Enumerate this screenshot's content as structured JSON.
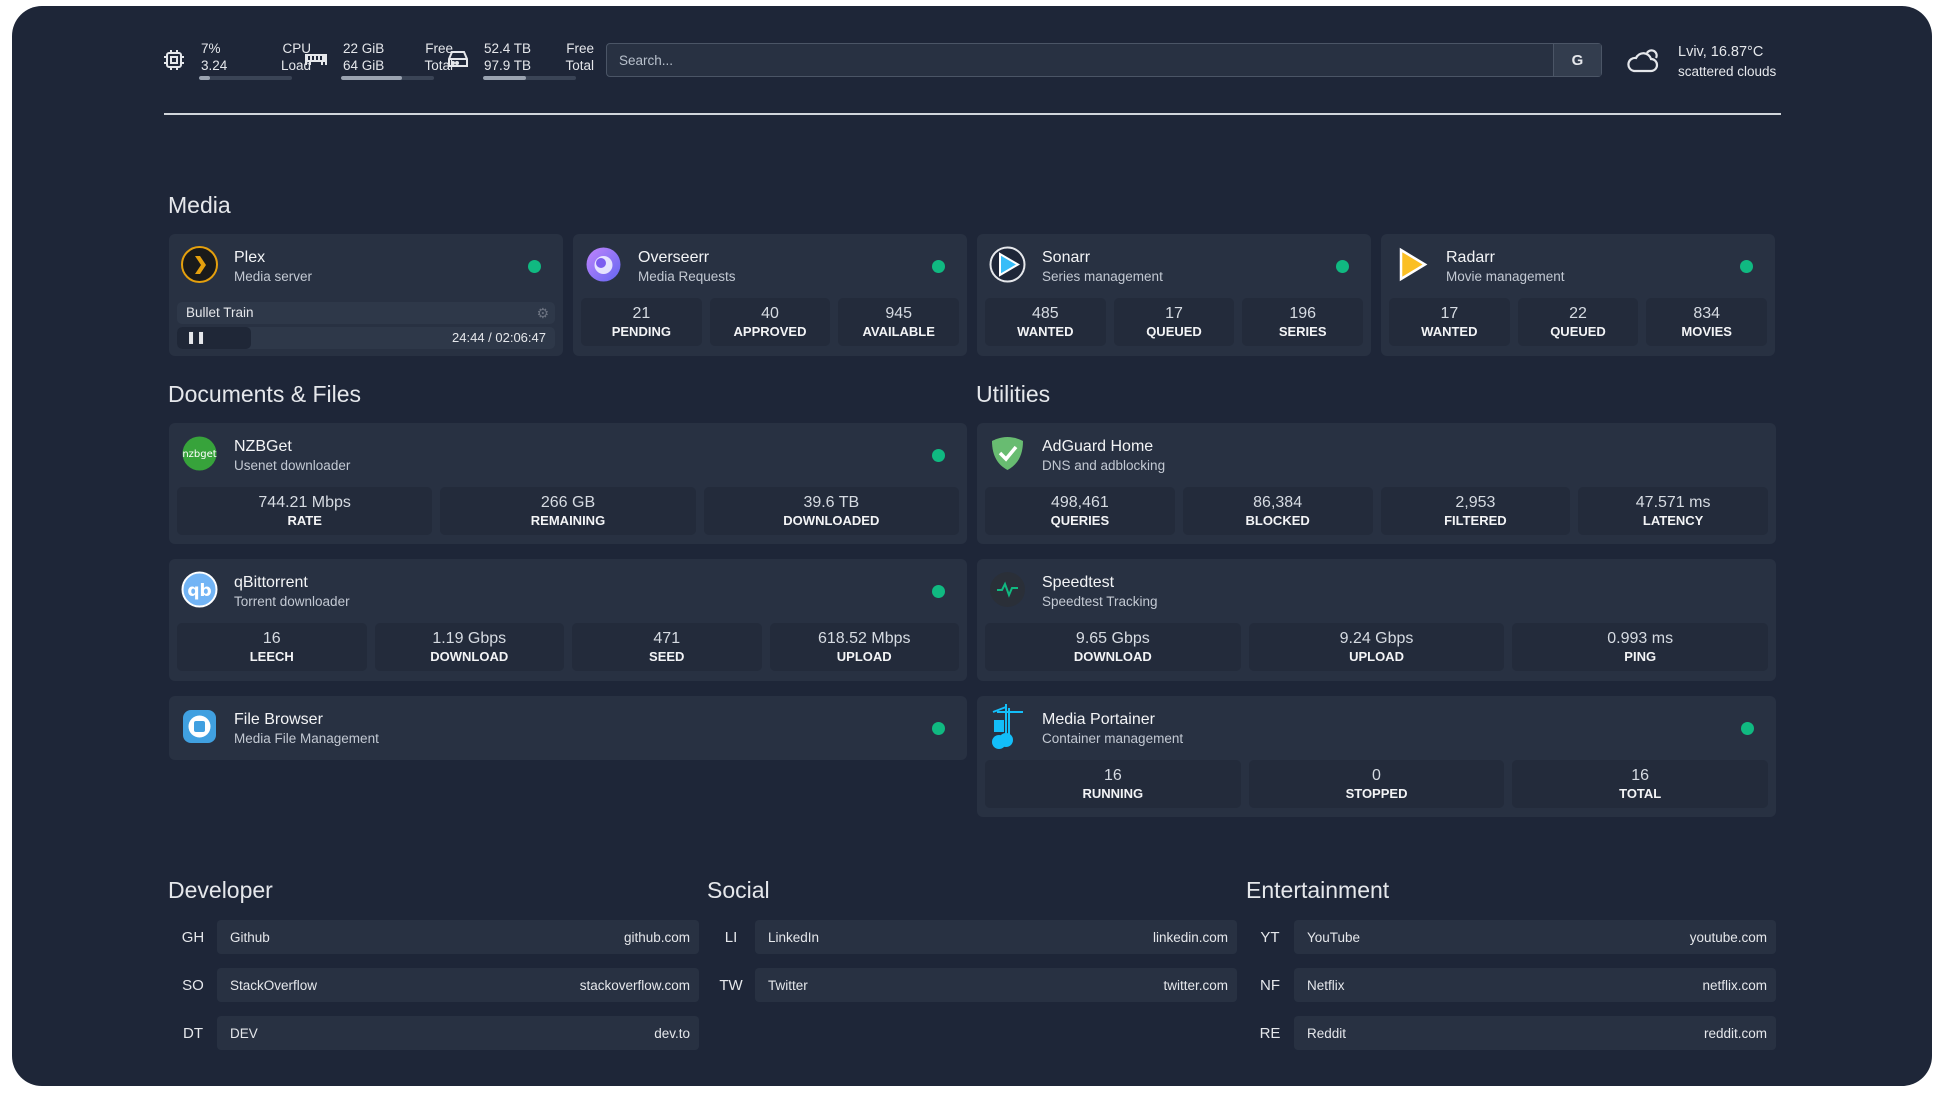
{
  "header": {
    "cpu": {
      "percent": "7%",
      "load": "3.24",
      "label1": "CPU",
      "label2": "Load",
      "fill": 0.07
    },
    "memory": {
      "free": "22 GiB",
      "total": "64 GiB",
      "label1": "Free",
      "label2": "Total",
      "fill": 0.66
    },
    "disk": {
      "free": "52.4 TB",
      "total": "97.9 TB",
      "label1": "Free",
      "label2": "Total",
      "fill": 0.46
    },
    "search": {
      "placeholder": "Search...",
      "button": "G"
    },
    "weather": {
      "location": "Lviv, 16.87°C",
      "condition": "scattered clouds",
      "icon": "cloud-icon"
    }
  },
  "sections": {
    "media": "Media",
    "docs": "Documents & Files",
    "utilities": "Utilities",
    "developer": "Developer",
    "social": "Social",
    "entertainment": "Entertainment"
  },
  "colors": {
    "status_online": "#10b981",
    "background": "#1e2638",
    "card": "#283142"
  },
  "plex": {
    "name": "Plex",
    "desc": "Media server",
    "now_playing": "Bullet Train",
    "time": "24:44 / 02:06:47",
    "progress": 0.195,
    "icon": "plex-icon"
  },
  "services": [
    {
      "name": "Overseerr",
      "desc": "Media Requests",
      "icon": "overseerr-icon",
      "stats": [
        {
          "v": "21",
          "k": "PENDING"
        },
        {
          "v": "40",
          "k": "APPROVED"
        },
        {
          "v": "945",
          "k": "AVAILABLE"
        }
      ]
    },
    {
      "name": "Sonarr",
      "desc": "Series management",
      "icon": "sonarr-icon",
      "stats": [
        {
          "v": "485",
          "k": "WANTED"
        },
        {
          "v": "17",
          "k": "QUEUED"
        },
        {
          "v": "196",
          "k": "SERIES"
        }
      ]
    },
    {
      "name": "Radarr",
      "desc": "Movie management",
      "icon": "radarr-icon",
      "stats": [
        {
          "v": "17",
          "k": "WANTED"
        },
        {
          "v": "22",
          "k": "QUEUED"
        },
        {
          "v": "834",
          "k": "MOVIES"
        }
      ]
    },
    {
      "name": "NZBGet",
      "desc": "Usenet downloader",
      "icon": "nzbget-icon",
      "stats": [
        {
          "v": "744.21 Mbps",
          "k": "RATE"
        },
        {
          "v": "266 GB",
          "k": "REMAINING"
        },
        {
          "v": "39.6 TB",
          "k": "DOWNLOADED"
        }
      ]
    },
    {
      "name": "qBittorrent",
      "desc": "Torrent downloader",
      "icon": "qbittorrent-icon",
      "stats": [
        {
          "v": "16",
          "k": "LEECH"
        },
        {
          "v": "1.19 Gbps",
          "k": "DOWNLOAD"
        },
        {
          "v": "471",
          "k": "SEED"
        },
        {
          "v": "618.52 Mbps",
          "k": "UPLOAD"
        }
      ]
    },
    {
      "name": "File Browser",
      "desc": "Media File Management",
      "icon": "file-browser-icon",
      "stats": []
    },
    {
      "name": "AdGuard Home",
      "desc": "DNS and adblocking",
      "icon": "adguard-icon",
      "nodot": true,
      "stats": [
        {
          "v": "498,461",
          "k": "QUERIES"
        },
        {
          "v": "86,384",
          "k": "BLOCKED"
        },
        {
          "v": "2,953",
          "k": "FILTERED"
        },
        {
          "v": "47.571 ms",
          "k": "LATENCY"
        }
      ]
    },
    {
      "name": "Speedtest",
      "desc": "Speedtest Tracking",
      "icon": "speedtest-icon",
      "nodot": true,
      "stats": [
        {
          "v": "9.65 Gbps",
          "k": "DOWNLOAD"
        },
        {
          "v": "9.24 Gbps",
          "k": "UPLOAD"
        },
        {
          "v": "0.993 ms",
          "k": "PING"
        }
      ]
    },
    {
      "name": "Media Portainer",
      "desc": "Container management",
      "icon": "portainer-icon",
      "stats": [
        {
          "v": "16",
          "k": "RUNNING"
        },
        {
          "v": "0",
          "k": "STOPPED"
        },
        {
          "v": "16",
          "k": "TOTAL"
        }
      ]
    }
  ],
  "bookmarks": [
    [
      {
        "abbr": "GH",
        "name": "Github",
        "url": "github.com"
      },
      {
        "abbr": "SO",
        "name": "StackOverflow",
        "url": "stackoverflow.com"
      },
      {
        "abbr": "DT",
        "name": "DEV",
        "url": "dev.to"
      }
    ],
    [
      {
        "abbr": "LI",
        "name": "LinkedIn",
        "url": "linkedin.com"
      },
      {
        "abbr": "TW",
        "name": "Twitter",
        "url": "twitter.com"
      }
    ],
    [
      {
        "abbr": "YT",
        "name": "YouTube",
        "url": "youtube.com"
      },
      {
        "abbr": "NF",
        "name": "Netflix",
        "url": "netflix.com"
      },
      {
        "abbr": "RE",
        "name": "Reddit",
        "url": "reddit.com"
      }
    ]
  ]
}
